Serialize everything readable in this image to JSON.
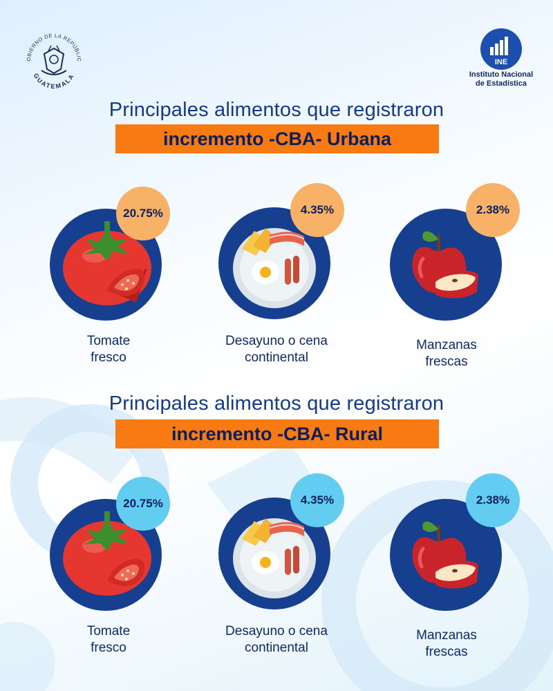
{
  "header": {
    "seal_text_top": "GOBIERNO DE LA REPÚBLICA",
    "seal_text_bottom": "GUATEMALA",
    "ine_abbrev": "INE",
    "ine_name_line1": "Instituto Nacional",
    "ine_name_line2": "de Estadística"
  },
  "sections": [
    {
      "heading": "Principales alimentos que registraron",
      "banner": "incremento -CBA- Urbana",
      "items": [
        {
          "icon": "tomato-icon",
          "percent": "20.75%",
          "label_line1": "Tomate",
          "label_line2": "fresco"
        },
        {
          "icon": "breakfast-plate-icon",
          "percent": "4.35%",
          "label_line1": "Desayuno o cena",
          "label_line2": "continental"
        },
        {
          "icon": "apple-icon",
          "percent": "2.38%",
          "label_line1": "Manzanas",
          "label_line2": "frescas"
        }
      ]
    },
    {
      "heading": "Principales alimentos que registraron",
      "banner": "incremento -CBA- Rural",
      "items": [
        {
          "icon": "tomato-icon",
          "percent": "20.75%",
          "label_line1": "Tomate",
          "label_line2": "fresco"
        },
        {
          "icon": "breakfast-plate-icon",
          "percent": "4.35%",
          "label_line1": "Desayuno o cena",
          "label_line2": "continental"
        },
        {
          "icon": "apple-icon",
          "percent": "2.38%",
          "label_line1": "Manzanas",
          "label_line2": "frescas"
        }
      ]
    }
  ],
  "colors": {
    "navy": "#163f8f",
    "orange": "#f77a12",
    "badge_urban": "#f7b267",
    "badge_rural": "#63ccf1"
  }
}
